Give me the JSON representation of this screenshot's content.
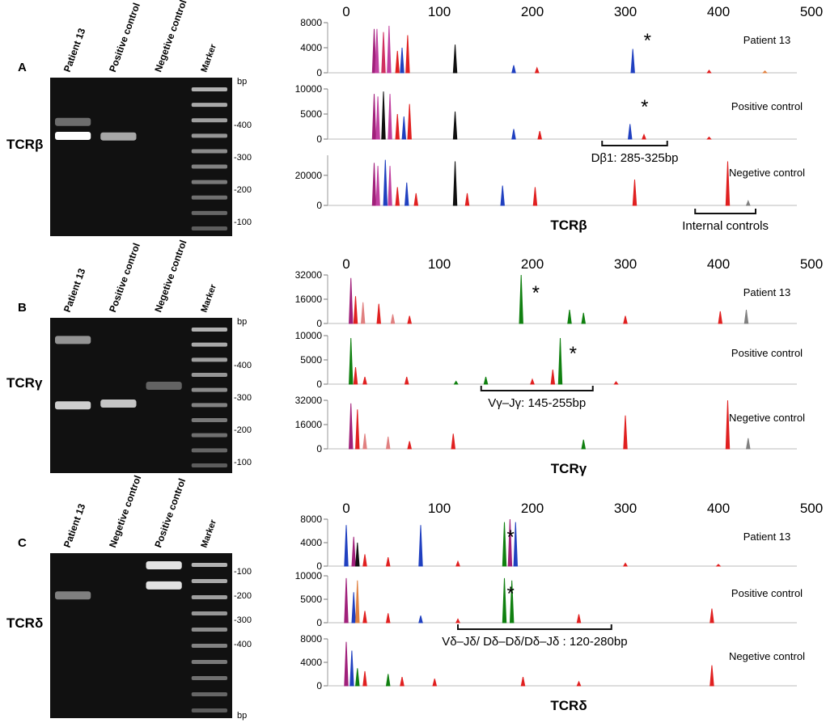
{
  "panels": [
    {
      "letter": "A",
      "gene": "TCRβ",
      "gel": {
        "lanes": [
          "Patient 13",
          "Positive control",
          "Negetive control",
          "Marker"
        ],
        "bp_label": "bp",
        "marker_labels": [
          "-400",
          "-300",
          "-200",
          "-100"
        ],
        "bands": [
          {
            "lane": 0,
            "bp": 300,
            "intensity": 1.0
          },
          {
            "lane": 0,
            "bp": 360,
            "intensity": 0.25
          },
          {
            "lane": 1,
            "bp": 298,
            "intensity": 0.55
          }
        ]
      },
      "x_ticks": [
        "0",
        "100",
        "200",
        "300",
        "400",
        "500"
      ],
      "traces": [
        {
          "label": "Patient 13",
          "y_ticks": [
            "8000",
            "4000",
            "0"
          ],
          "ymax": 8000,
          "star_bp": 315,
          "peaks": [
            [
              30,
              7000,
              "#a0207a"
            ],
            [
              33,
              7000,
              "#c040a0"
            ],
            [
              40,
              6500,
              "#d03060"
            ],
            [
              46,
              7500,
              "#c040a0"
            ],
            [
              55,
              3500,
              "#e02020"
            ],
            [
              60,
              4000,
              "#2040c0"
            ],
            [
              66,
              6000,
              "#e02020"
            ],
            [
              117,
              4500,
              "#101010"
            ],
            [
              180,
              1200,
              "#2040c0"
            ],
            [
              205,
              800,
              "#e02020"
            ],
            [
              308,
              3800,
              "#2040c0"
            ],
            [
              390,
              400,
              "#e02020"
            ],
            [
              450,
              300,
              "#e08040"
            ]
          ]
        },
        {
          "label": "Positive control",
          "y_ticks": [
            "10000",
            "5000",
            "0"
          ],
          "ymax": 10000,
          "star_bp": 312,
          "peaks": [
            [
              30,
              9000,
              "#a0207a"
            ],
            [
              34,
              8500,
              "#c040a0"
            ],
            [
              40,
              9500,
              "#101010"
            ],
            [
              47,
              9000,
              "#c040a0"
            ],
            [
              55,
              5000,
              "#e02020"
            ],
            [
              62,
              4500,
              "#2040c0"
            ],
            [
              68,
              7000,
              "#e02020"
            ],
            [
              117,
              5500,
              "#101010"
            ],
            [
              180,
              2000,
              "#2040c0"
            ],
            [
              208,
              1600,
              "#e02020"
            ],
            [
              305,
              3000,
              "#2040c0"
            ],
            [
              320,
              900,
              "#e02020"
            ],
            [
              390,
              400,
              "#e02020"
            ]
          ]
        },
        {
          "label": "Negetive control",
          "y_ticks": [
            "20000",
            "0"
          ],
          "ymax": 33000,
          "star_bp": null,
          "peaks": [
            [
              30,
              28000,
              "#a0207a"
            ],
            [
              34,
              26000,
              "#c040a0"
            ],
            [
              42,
              30000,
              "#2040c0"
            ],
            [
              47,
              26000,
              "#c040a0"
            ],
            [
              55,
              12000,
              "#e02020"
            ],
            [
              65,
              15000,
              "#2040c0"
            ],
            [
              75,
              8000,
              "#e02020"
            ],
            [
              117,
              29000,
              "#101010"
            ],
            [
              130,
              8000,
              "#e02020"
            ],
            [
              168,
              13000,
              "#2040c0"
            ],
            [
              203,
              12000,
              "#e02020"
            ],
            [
              310,
              17000,
              "#e02020"
            ],
            [
              410,
              29000,
              "#e02020"
            ],
            [
              432,
              3000,
              "#808080"
            ]
          ]
        }
      ],
      "brackets": [
        {
          "from_bp": 275,
          "to_bp": 345,
          "label": "Dβ1: 285-325bp",
          "trace": 1
        },
        {
          "from_bp": 375,
          "to_bp": 440,
          "label": "Internal controls",
          "trace": 2
        }
      ]
    },
    {
      "letter": "B",
      "gene": "TCRγ",
      "gel": {
        "lanes": [
          "Patient 13",
          "Positive control",
          "Negetive control",
          "Marker"
        ],
        "bp_label": "bp",
        "marker_labels": [
          "-400",
          "-300",
          "-200",
          "-100"
        ],
        "bands": [
          {
            "lane": 0,
            "bp": 480,
            "intensity": 0.45
          },
          {
            "lane": 0,
            "bp": 200,
            "intensity": 0.75
          },
          {
            "lane": 1,
            "bp": 205,
            "intensity": 0.7
          },
          {
            "lane": 2,
            "bp": 260,
            "intensity": 0.2
          }
        ]
      },
      "x_ticks": [
        "0",
        "100",
        "200",
        "300",
        "400",
        "500"
      ],
      "traces": [
        {
          "label": "Patient 13",
          "y_ticks": [
            "32000",
            "16000",
            "0"
          ],
          "ymax": 32000,
          "star_bp": 195,
          "peaks": [
            [
              5,
              30000,
              "#a0207a"
            ],
            [
              10,
              18000,
              "#e02020"
            ],
            [
              18,
              14000,
              "#e08080"
            ],
            [
              35,
              13000,
              "#e02020"
            ],
            [
              50,
              6000,
              "#e08080"
            ],
            [
              68,
              5000,
              "#e02020"
            ],
            [
              188,
              32000,
              "#108010"
            ],
            [
              240,
              9000,
              "#108010"
            ],
            [
              255,
              7000,
              "#108010"
            ],
            [
              300,
              5000,
              "#e02020"
            ],
            [
              402,
              8000,
              "#e02020"
            ],
            [
              430,
              9000,
              "#808080"
            ]
          ]
        },
        {
          "label": "Positive control",
          "y_ticks": [
            "10000",
            "5000",
            "0"
          ],
          "ymax": 10000,
          "star_bp": 235,
          "peaks": [
            [
              5,
              9500,
              "#108010"
            ],
            [
              10,
              3500,
              "#e02020"
            ],
            [
              20,
              1500,
              "#e02020"
            ],
            [
              65,
              1500,
              "#e02020"
            ],
            [
              118,
              600,
              "#108010"
            ],
            [
              150,
              1500,
              "#108010"
            ],
            [
              200,
              1000,
              "#e02020"
            ],
            [
              222,
              3000,
              "#e02020"
            ],
            [
              230,
              9500,
              "#108010"
            ],
            [
              290,
              500,
              "#e02020"
            ]
          ]
        },
        {
          "label": "Negetive control",
          "y_ticks": [
            "32000",
            "16000",
            "0"
          ],
          "ymax": 32000,
          "star_bp": null,
          "peaks": [
            [
              5,
              30000,
              "#a0207a"
            ],
            [
              12,
              26000,
              "#e02020"
            ],
            [
              20,
              10000,
              "#e08080"
            ],
            [
              45,
              8000,
              "#e08080"
            ],
            [
              68,
              5000,
              "#e02020"
            ],
            [
              115,
              10000,
              "#e02020"
            ],
            [
              255,
              6000,
              "#108010"
            ],
            [
              300,
              22000,
              "#e02020"
            ],
            [
              410,
              32000,
              "#e02020"
            ],
            [
              432,
              7000,
              "#808080"
            ]
          ]
        }
      ],
      "brackets": [
        {
          "from_bp": 145,
          "to_bp": 265,
          "label": "Vγ–Jγ: 145-255bp",
          "trace": 1
        }
      ]
    },
    {
      "letter": "C",
      "gene": "TCRδ",
      "gel": {
        "lanes": [
          "Patient 13",
          "Negetive control",
          "Positive control",
          "Marker"
        ],
        "bp_label": "bp",
        "marker_labels": [
          "-100",
          "-200",
          "-300",
          "-400"
        ],
        "bands": [
          {
            "lane": 0,
            "bp": 175,
            "intensity": 0.35
          },
          {
            "lane": 2,
            "bp": 100,
            "intensity": 0.85
          },
          {
            "lane": 2,
            "bp": 150,
            "intensity": 0.85
          }
        ]
      },
      "x_ticks": [
        "0",
        "100",
        "200",
        "300",
        "400",
        "500"
      ],
      "traces": [
        {
          "label": "Patient 13",
          "y_ticks": [
            "8000",
            "4000",
            "0"
          ],
          "ymax": 8000,
          "star_bp": 168,
          "peaks": [
            [
              0,
              7000,
              "#2040c0"
            ],
            [
              8,
              5000,
              "#a0207a"
            ],
            [
              12,
              4000,
              "#101010"
            ],
            [
              20,
              2000,
              "#e02020"
            ],
            [
              45,
              1500,
              "#e02020"
            ],
            [
              80,
              7000,
              "#2040c0"
            ],
            [
              120,
              800,
              "#e02020"
            ],
            [
              170,
              7500,
              "#108010"
            ],
            [
              176,
              8000,
              "#a0207a"
            ],
            [
              182,
              7500,
              "#2040c0"
            ],
            [
              300,
              500,
              "#e02020"
            ],
            [
              400,
              300,
              "#e02020"
            ]
          ]
        },
        {
          "label": "Positive control",
          "y_ticks": [
            "10000",
            "5000",
            "0"
          ],
          "ymax": 10000,
          "star_bp": 168,
          "peaks": [
            [
              0,
              9500,
              "#a0207a"
            ],
            [
              8,
              6500,
              "#2040c0"
            ],
            [
              12,
              9000,
              "#e08040"
            ],
            [
              20,
              2500,
              "#e02020"
            ],
            [
              45,
              2000,
              "#e02020"
            ],
            [
              80,
              1500,
              "#2040c0"
            ],
            [
              120,
              800,
              "#e02020"
            ],
            [
              170,
              9500,
              "#108010"
            ],
            [
              178,
              9000,
              "#108010"
            ],
            [
              250,
              1800,
              "#e02020"
            ],
            [
              393,
              3000,
              "#e02020"
            ]
          ]
        },
        {
          "label": "Negetive control",
          "y_ticks": [
            "8000",
            "4000",
            "0"
          ],
          "ymax": 8000,
          "star_bp": null,
          "peaks": [
            [
              0,
              7500,
              "#a0207a"
            ],
            [
              6,
              6000,
              "#2040c0"
            ],
            [
              12,
              3000,
              "#108010"
            ],
            [
              20,
              2500,
              "#e02020"
            ],
            [
              45,
              2000,
              "#108010"
            ],
            [
              60,
              1500,
              "#e02020"
            ],
            [
              95,
              1200,
              "#e02020"
            ],
            [
              190,
              1500,
              "#e02020"
            ],
            [
              250,
              700,
              "#e02020"
            ],
            [
              393,
              3500,
              "#e02020"
            ]
          ]
        }
      ],
      "brackets": [
        {
          "from_bp": 120,
          "to_bp": 285,
          "label": "Vδ–Jδ/ Dδ–Dδ/Dδ–Jδ : 120-280bp",
          "trace": 1
        }
      ]
    }
  ]
}
